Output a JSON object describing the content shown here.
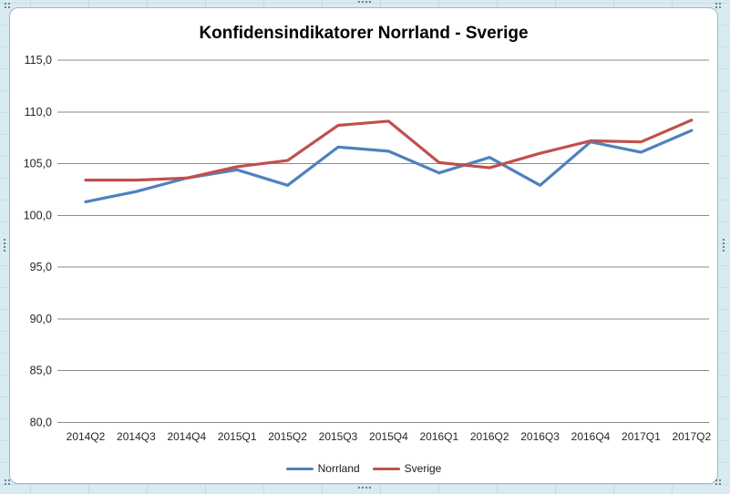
{
  "chart_data": {
    "type": "line",
    "title": "Konfidensindikatorer Norrland - Sverige",
    "categories": [
      "2014Q2",
      "2014Q3",
      "2014Q4",
      "2015Q1",
      "2015Q2",
      "2015Q3",
      "2015Q4",
      "2016Q1",
      "2016Q2",
      "2016Q3",
      "2016Q4",
      "2017Q1",
      "2017Q2"
    ],
    "series": [
      {
        "name": "Norrland",
        "color": "#4F81BD",
        "values": [
          101.3,
          102.3,
          103.6,
          104.4,
          102.9,
          106.6,
          106.2,
          104.1,
          105.6,
          102.9,
          107.1,
          106.1,
          108.2
        ]
      },
      {
        "name": "Sverige",
        "color": "#C0504D",
        "values": [
          103.4,
          103.4,
          103.6,
          104.7,
          105.3,
          108.7,
          109.1,
          105.1,
          104.6,
          106.0,
          107.2,
          107.1,
          109.2
        ]
      }
    ],
    "ylim": [
      80,
      115
    ],
    "ytick_step": 5,
    "ytick_labels": [
      "115,0",
      "110,0",
      "105,0",
      "100,0",
      "95,0",
      "90,0",
      "85,0",
      "80,0"
    ],
    "decimal_separator": ",",
    "grid": true,
    "legend_position": "bottom",
    "gridline_color": "#8a8a8a",
    "axis_text_color": "#262626"
  }
}
